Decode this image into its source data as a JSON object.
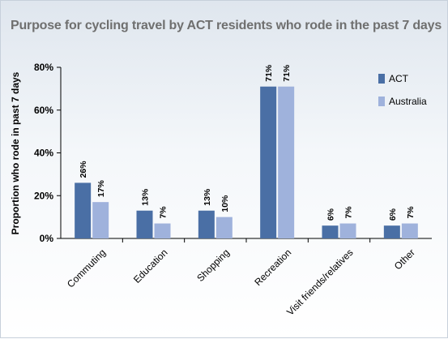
{
  "chart_data": {
    "type": "bar",
    "title": "Purpose for cycling travel by ACT residents who rode in the past 7 days",
    "ylabel": "Proportion who rode in past 7 days",
    "xlabel": "",
    "ylim": [
      0,
      80
    ],
    "yticks": [
      "0%",
      "20%",
      "40%",
      "60%",
      "80%"
    ],
    "categories": [
      "Commuting",
      "Education",
      "Shopping",
      "Recreation",
      "Visit friends/relatives",
      "Other"
    ],
    "series": [
      {
        "name": "ACT",
        "values": [
          26,
          13,
          13,
          71,
          6,
          6
        ],
        "labels": [
          "26%",
          "13%",
          "13%",
          "71%",
          "6%",
          "6%"
        ],
        "color": "#4a6fa5"
      },
      {
        "name": "Australia",
        "values": [
          17,
          7,
          10,
          71,
          7,
          7
        ],
        "labels": [
          "17%",
          "7%",
          "10%",
          "71%",
          "7%",
          "7%"
        ],
        "color": "#9fb2dc"
      }
    ],
    "legend_position": "top-right",
    "grid": false
  }
}
